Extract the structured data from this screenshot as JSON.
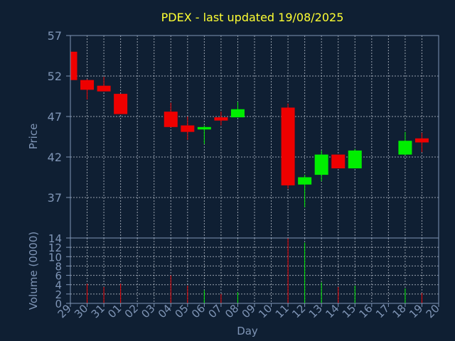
{
  "chart_data": {
    "type": "candlestick",
    "title": "PDEX - last updated 19/08/2025",
    "xlabel": "Day",
    "ylabel": "Price",
    "volume_label": "Volume (0000)",
    "grid": true,
    "x": [
      "29",
      "30",
      "31",
      "01",
      "02",
      "03",
      "04",
      "05",
      "06",
      "07",
      "08",
      "09",
      "10",
      "11",
      "12",
      "13",
      "14",
      "15",
      "16",
      "17",
      "18",
      "19",
      "20"
    ],
    "price_ylim": [
      32,
      57
    ],
    "price_ticks": [
      "57",
      "52",
      "47",
      "42",
      "37"
    ],
    "price_tick_values": [
      57,
      52,
      47,
      42,
      37
    ],
    "volume_ylim": [
      0,
      14
    ],
    "volume_ticks": [
      "14",
      "12",
      "10",
      "8",
      "6",
      "4",
      "2",
      "0"
    ],
    "volume_tick_values": [
      14,
      12,
      10,
      8,
      6,
      4,
      2,
      0
    ],
    "ohlc": [
      {
        "day": "29",
        "open": 55.0,
        "high": 55.0,
        "low": 51.4,
        "close": 51.5,
        "volume": 0
      },
      {
        "day": "30",
        "open": 51.5,
        "high": 51.6,
        "low": 49.1,
        "close": 50.3,
        "volume": 4.2
      },
      {
        "day": "31",
        "open": 50.8,
        "high": 51.9,
        "low": 50.1,
        "close": 50.1,
        "volume": 3.5
      },
      {
        "day": "01",
        "open": 49.8,
        "high": 49.8,
        "low": 47.3,
        "close": 47.3,
        "volume": 4.2
      },
      {
        "day": "04",
        "open": 47.6,
        "high": 48.7,
        "low": 45.7,
        "close": 45.7,
        "volume": 6.0
      },
      {
        "day": "05",
        "open": 45.9,
        "high": 47.0,
        "low": 44.1,
        "close": 45.1,
        "volume": 3.8
      },
      {
        "day": "06",
        "open": 45.4,
        "high": 45.9,
        "low": 43.6,
        "close": 45.7,
        "volume": 2.8
      },
      {
        "day": "07",
        "open": 46.9,
        "high": 47.6,
        "low": 45.9,
        "close": 46.5,
        "volume": 2.0
      },
      {
        "day": "08",
        "open": 46.9,
        "high": 48.8,
        "low": 46.9,
        "close": 47.9,
        "volume": 2.4
      },
      {
        "day": "11",
        "open": 48.1,
        "high": 48.6,
        "low": 38.1,
        "close": 38.5,
        "volume": 14.0
      },
      {
        "day": "12",
        "open": 38.6,
        "high": 39.8,
        "low": 35.8,
        "close": 39.5,
        "volume": 13.0
      },
      {
        "day": "13",
        "open": 39.8,
        "high": 42.8,
        "low": 39.0,
        "close": 42.3,
        "volume": 4.5
      },
      {
        "day": "14",
        "open": 42.3,
        "high": 42.3,
        "low": 40.6,
        "close": 40.6,
        "volume": 3.5
      },
      {
        "day": "15",
        "open": 40.6,
        "high": 43.0,
        "low": 40.6,
        "close": 42.8,
        "volume": 3.8
      },
      {
        "day": "18",
        "open": 42.3,
        "high": 45.1,
        "low": 42.2,
        "close": 44.0,
        "volume": 3.2
      },
      {
        "day": "19",
        "open": 44.3,
        "high": 45.0,
        "low": 42.6,
        "close": 43.8,
        "volume": 2.2
      }
    ],
    "colors": {
      "background": "#0f1f33",
      "up": "#00ee00",
      "down": "#ee0000",
      "grid": "#cfd6e0",
      "axis": "#7f95b6",
      "tick_text": "#7f95b6",
      "title_text": "#ffff33"
    }
  }
}
